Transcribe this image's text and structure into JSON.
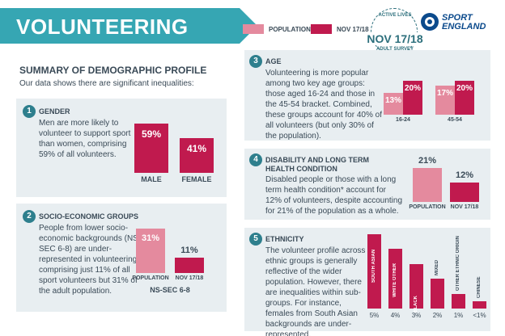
{
  "header": {
    "title": "VOLUNTEERING",
    "legend": [
      {
        "label": "POPULATION",
        "color": "#e48a9e"
      },
      {
        "label": "NOV 17/18",
        "color": "#c01a4e"
      }
    ],
    "badge": {
      "top": "ACTIVE LIVES",
      "main": "NOV 17/18",
      "bottom": "ADULT SURVEY"
    },
    "logo": {
      "line1": "SPORT",
      "line2": "ENGLAND"
    }
  },
  "summary": {
    "title": "SUMMARY OF DEMOGRAPHIC PROFILE",
    "intro": "Our data shows there are significant inequalities:"
  },
  "sections": {
    "gender": {
      "number": "1",
      "heading": "GENDER",
      "body": "Men are more likely to volunteer to support sport than women, comprising 59% of all volunteers."
    },
    "socio": {
      "number": "2",
      "heading": "SOCIO-ECONOMIC GROUPS",
      "body": "People from lower socio-economic backgrounds (NS-SEC 6-8) are under-represented in volunteering, comprising just 11% of all sport volunteers but 31% of the adult population."
    },
    "age": {
      "number": "3",
      "heading": "AGE",
      "body": "Volunteering is more popular among two key age groups: those aged 16-24 and those in the 45-54 bracket. Combined, these groups account for 40% of all volunteers (but only 30% of the population)."
    },
    "disability": {
      "number": "4",
      "heading": "DISABILITY AND LONG TERM HEALTH CONDITION",
      "body": "Disabled people or those with a long term health condition* account for 12% of volunteers, despite accounting for 21% of the population as a whole."
    },
    "ethnicity": {
      "number": "5",
      "heading": "ETHNICITY",
      "body": "The volunteer profile across ethnic groups is generally reflective of the wider population. However, there are inequalities within sub-groups. For instance, females from South Asian backgrounds are under-represented."
    }
  },
  "chart_data": [
    {
      "type": "bar",
      "id": "gender",
      "categories": [
        "MALE",
        "FEMALE"
      ],
      "values": [
        59,
        41
      ],
      "value_labels": [
        "59%",
        "41%"
      ],
      "colors": [
        "#c01a4e",
        "#c01a4e"
      ],
      "ylim": [
        0,
        100
      ]
    },
    {
      "type": "bar",
      "id": "socio",
      "categories": [
        "POPULATION",
        "NOV 17/18"
      ],
      "values": [
        31,
        11
      ],
      "value_labels": [
        "31%",
        "11%"
      ],
      "colors": [
        "#e48a9e",
        "#c01a4e"
      ],
      "xlabel": "NS-SEC 6-8",
      "ylim": [
        0,
        35
      ]
    },
    {
      "type": "bar",
      "id": "age",
      "categories": [
        "16-24",
        "45-54"
      ],
      "series": [
        {
          "name": "POPULATION",
          "values": [
            13,
            17
          ],
          "value_labels": [
            "13%",
            "17%"
          ]
        },
        {
          "name": "NOV 17/18",
          "values": [
            20,
            20
          ],
          "value_labels": [
            "20%",
            "20%"
          ]
        }
      ],
      "colors": [
        "#e48a9e",
        "#c01a4e"
      ],
      "ylim": [
        0,
        22
      ]
    },
    {
      "type": "bar",
      "id": "disability",
      "categories": [
        "POPULATION",
        "NOV 17/18"
      ],
      "values": [
        21,
        12
      ],
      "value_labels": [
        "21%",
        "12%"
      ],
      "colors": [
        "#e48a9e",
        "#c01a4e"
      ],
      "ylim": [
        0,
        21
      ]
    },
    {
      "type": "bar",
      "id": "ethnicity",
      "categories": [
        "SOUTH ASIAN",
        "WHITE OTHER",
        "BLACK",
        "MIXED",
        "OTHER ETHNIC ORIGIN",
        "CHINESE"
      ],
      "values": [
        5,
        4,
        3,
        2,
        1,
        0.5
      ],
      "value_labels": [
        "5%",
        "4%",
        "3%",
        "2%",
        "1%",
        "<1%"
      ],
      "colors": [
        "#c01a4e"
      ],
      "ylim": [
        0,
        5
      ]
    }
  ]
}
